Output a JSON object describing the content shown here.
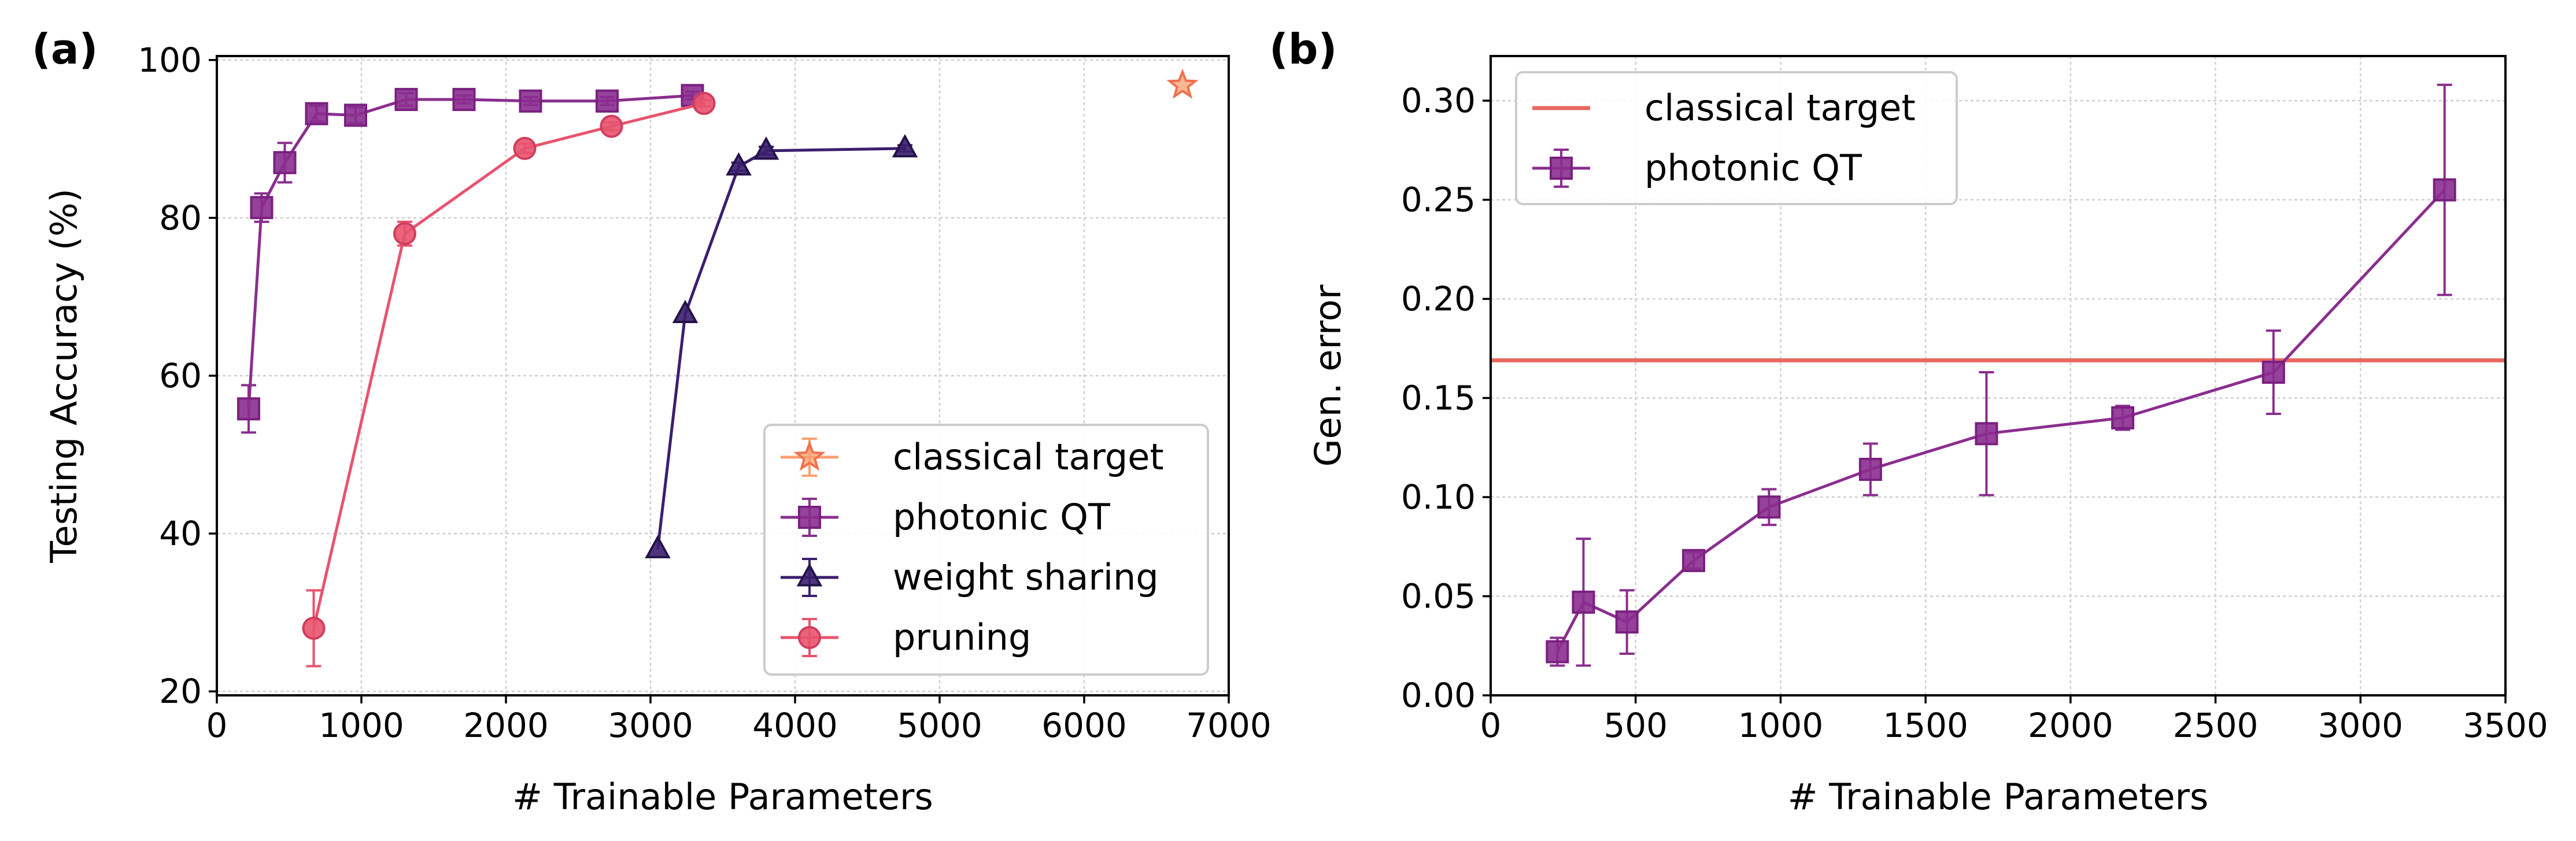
{
  "figure": {
    "panels": [
      "(a)",
      "(b)"
    ]
  },
  "chart_data": [
    {
      "panel_label": "(a)",
      "type": "line",
      "title": "",
      "xlabel": "# Trainable Parameters",
      "ylabel": "Testing Accuracy (%)",
      "xlim": [
        0,
        7000
      ],
      "ylim": [
        19.5,
        100.5
      ],
      "xticks": [
        0,
        1000,
        2000,
        3000,
        4000,
        5000,
        6000,
        7000
      ],
      "yticks": [
        20,
        40,
        60,
        80,
        100
      ],
      "grid": true,
      "legend_position": "lower-right",
      "series": [
        {
          "name": "classical target",
          "marker": "star",
          "color": "#f9a070",
          "edge": "#f07050",
          "x": [
            6680
          ],
          "y": [
            96.8
          ],
          "err": [
            0
          ]
        },
        {
          "name": "photonic QT",
          "marker": "square",
          "color": "#8a2e8f",
          "edge": "#7a2080",
          "x": [
            220,
            310,
            470,
            690,
            960,
            1310,
            1710,
            2170,
            2700,
            3290
          ],
          "y": [
            55.8,
            81.3,
            87.0,
            93.2,
            93.0,
            95.0,
            95.0,
            94.8,
            94.8,
            95.5
          ],
          "err": [
            3.0,
            1.8,
            2.5,
            1.0,
            1.0,
            0.8,
            0.5,
            0.5,
            0.5,
            0.5
          ]
        },
        {
          "name": "weight sharing",
          "marker": "triangle",
          "color": "#3b1f6e",
          "edge": "#24134a",
          "x": [
            3050,
            3240,
            3610,
            3800,
            4760
          ],
          "y": [
            38.0,
            67.8,
            86.5,
            88.5,
            88.8
          ],
          "err": [
            0,
            0,
            0.5,
            0.5,
            0.4
          ]
        },
        {
          "name": "pruning",
          "marker": "circle",
          "color": "#e8536e",
          "edge": "#d03d5d",
          "x": [
            670,
            1300,
            2130,
            2730,
            3370
          ],
          "y": [
            28.0,
            78.0,
            88.8,
            91.6,
            94.5
          ],
          "err": [
            4.8,
            1.5,
            0.6,
            0.5,
            0.4
          ]
        }
      ]
    },
    {
      "panel_label": "(b)",
      "type": "line",
      "title": "",
      "xlabel": "# Trainable Parameters",
      "ylabel": "Gen. error",
      "xlim": [
        0,
        3500
      ],
      "ylim": [
        0,
        0.3225
      ],
      "xticks": [
        0,
        500,
        1000,
        1500,
        2000,
        2500,
        3000,
        3500
      ],
      "yticks": [
        0.0,
        0.05,
        0.1,
        0.15,
        0.2,
        0.25,
        0.3
      ],
      "ytick_labels": [
        "0.00",
        "0.05",
        "0.10",
        "0.15",
        "0.20",
        "0.25",
        "0.30"
      ],
      "grid": true,
      "legend_position": "upper-left",
      "hline": {
        "name": "classical target",
        "y": 0.169,
        "color": "#e8675f"
      },
      "series": [
        {
          "name": "photonic QT",
          "marker": "square",
          "color": "#8a2e8f",
          "edge": "#7a2080",
          "x": [
            230,
            320,
            470,
            700,
            960,
            1310,
            1710,
            2180,
            2700,
            3290
          ],
          "y": [
            0.022,
            0.047,
            0.037,
            0.068,
            0.095,
            0.114,
            0.132,
            0.14,
            0.163,
            0.255
          ],
          "err": [
            0.007,
            0.032,
            0.016,
            0.004,
            0.009,
            0.013,
            0.031,
            0.006,
            0.021,
            0.053
          ]
        }
      ]
    }
  ]
}
